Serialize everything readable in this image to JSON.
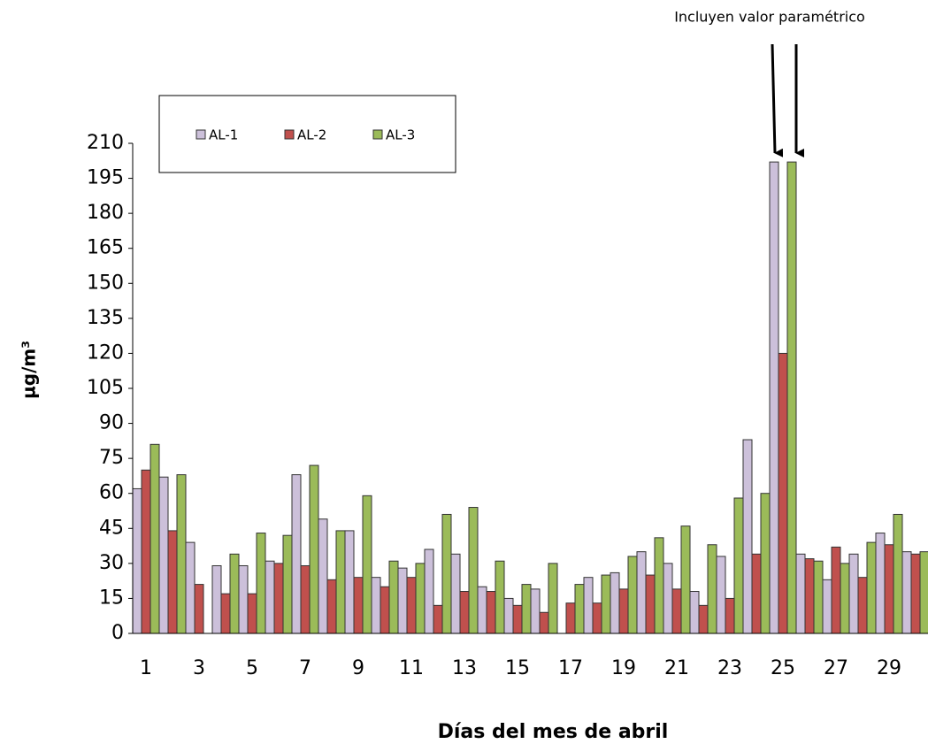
{
  "chart_data": {
    "type": "bar",
    "annotation": "Incluyen valor paramétrico",
    "x_label": "Días del mes de abril",
    "y_label": "µg/m³",
    "categories": [
      "1",
      null,
      "3",
      null,
      "5",
      null,
      "7",
      null,
      "9",
      null,
      "11",
      null,
      "13",
      null,
      "15",
      null,
      "17",
      null,
      "19",
      null,
      "21",
      null,
      "23",
      null,
      "25",
      null,
      "27",
      null,
      "29",
      null
    ],
    "series": [
      {
        "name": "AL-1",
        "color": "#ccc0da",
        "values": [
          62,
          67,
          39,
          29,
          29,
          31,
          68,
          49,
          44,
          24,
          28,
          36,
          34,
          20,
          15,
          19,
          null,
          24,
          26,
          35,
          30,
          18,
          33,
          83,
          202,
          34,
          23,
          34,
          43,
          35
        ]
      },
      {
        "name": "AL-2",
        "color": "#c0504d",
        "values": [
          70,
          44,
          21,
          17,
          17,
          30,
          29,
          23,
          24,
          20,
          24,
          12,
          18,
          18,
          12,
          9,
          13,
          13,
          19,
          25,
          19,
          12,
          15,
          34,
          120,
          32,
          37,
          24,
          38,
          34
        ]
      },
      {
        "name": "AL-3",
        "color": "#9bbb59",
        "values": [
          81,
          68,
          null,
          34,
          43,
          42,
          72,
          44,
          59,
          31,
          30,
          51,
          54,
          31,
          21,
          30,
          21,
          25,
          33,
          41,
          46,
          38,
          58,
          60,
          202,
          31,
          30,
          39,
          51,
          35
        ]
      }
    ],
    "ylim": [
      0,
      210
    ],
    "yticks": [
      0,
      15,
      30,
      45,
      60,
      75,
      90,
      105,
      120,
      135,
      150,
      165,
      180,
      195,
      210
    ]
  }
}
